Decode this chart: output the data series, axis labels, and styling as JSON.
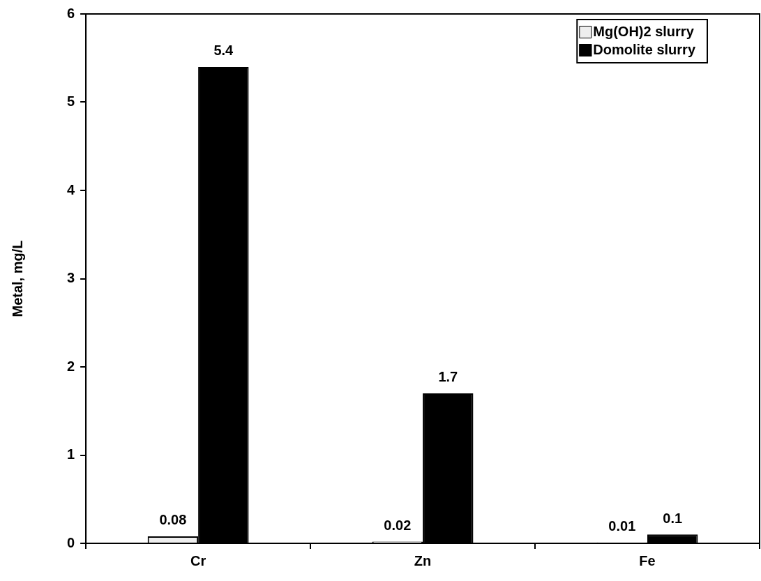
{
  "chart_data": {
    "type": "bar",
    "ylabel": "Metal, mg/L",
    "categories": [
      "Cr",
      "Zn",
      "Fe"
    ],
    "series": [
      {
        "name": "Mg(OH)2 slurry",
        "color": "#eeeeee",
        "values": [
          0.08,
          0.02,
          0.01
        ]
      },
      {
        "name": "Domolite slurry",
        "color": "#000000",
        "values": [
          5.4,
          1.7,
          0.1
        ]
      }
    ],
    "ylim": [
      0,
      6
    ],
    "yticks": [
      0,
      1,
      2,
      3,
      4,
      5,
      6
    ],
    "grid": false,
    "legend": "top right",
    "data_labels": true
  }
}
